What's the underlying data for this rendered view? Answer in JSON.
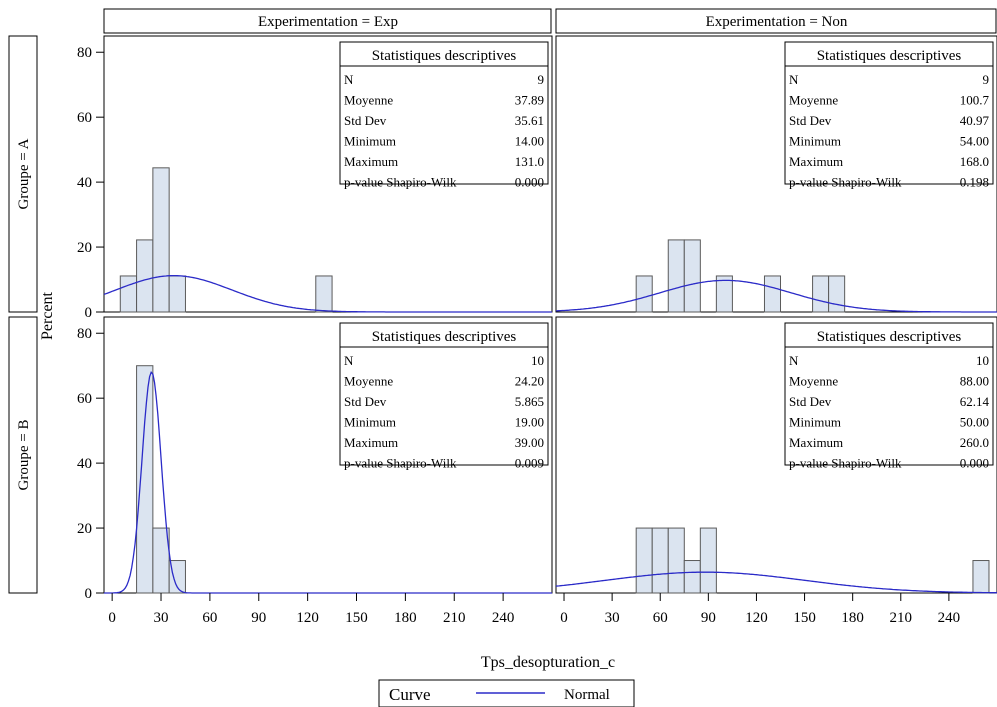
{
  "chart_data": {
    "type": "bar",
    "xlabel": "Tps_desopturation_c",
    "ylabel": "Percent",
    "column_var": "Experimentation",
    "row_var": "Groupe",
    "column_headers": [
      "Experimentation = Exp",
      "Experimentation = Non"
    ],
    "row_headers": [
      "Groupe = A",
      "Groupe = B"
    ],
    "ylim": [
      0,
      85
    ],
    "yticks": [
      0,
      20,
      40,
      60,
      80
    ],
    "xlim": [
      -5,
      270
    ],
    "xticks": [
      0,
      30,
      60,
      90,
      120,
      150,
      180,
      210,
      240
    ],
    "bin_width": 10,
    "legend": {
      "title": "Curve",
      "entries": [
        {
          "label": "Normal",
          "color": "#2b2bc8"
        }
      ],
      "placement": "bottom-center"
    },
    "colors": {
      "bar_fill": "#dbe4f0",
      "bar_edge": "#5a5a5a",
      "curve": "#2b2bc8"
    },
    "panels": [
      {
        "row": "Groupe = A",
        "col": "Experimentation = Exp",
        "bins": [
          {
            "x": 10,
            "percent": 11.1
          },
          {
            "x": 20,
            "percent": 22.2
          },
          {
            "x": 30,
            "percent": 44.4
          },
          {
            "x": 40,
            "percent": 11.1
          },
          {
            "x": 130,
            "percent": 11.1
          }
        ],
        "normal": {
          "mean": 37.89,
          "sd": 35.61
        },
        "stats_title": "Statistiques descriptives",
        "stats": [
          {
            "label": "N",
            "value": "9"
          },
          {
            "label": "Moyenne",
            "value": "37.89"
          },
          {
            "label": "Std Dev",
            "value": "35.61"
          },
          {
            "label": "Minimum",
            "value": "14.00"
          },
          {
            "label": "Maximum",
            "value": "131.0"
          },
          {
            "label": "p-value Shapiro-Wilk",
            "value": "0.000"
          }
        ]
      },
      {
        "row": "Groupe = A",
        "col": "Experimentation = Non",
        "bins": [
          {
            "x": 50,
            "percent": 11.1
          },
          {
            "x": 70,
            "percent": 22.2
          },
          {
            "x": 80,
            "percent": 22.2
          },
          {
            "x": 100,
            "percent": 11.1
          },
          {
            "x": 130,
            "percent": 11.1
          },
          {
            "x": 160,
            "percent": 11.1
          },
          {
            "x": 170,
            "percent": 11.1
          }
        ],
        "normal": {
          "mean": 100.7,
          "sd": 40.97
        },
        "stats_title": "Statistiques descriptives",
        "stats": [
          {
            "label": "N",
            "value": "9"
          },
          {
            "label": "Moyenne",
            "value": "100.7"
          },
          {
            "label": "Std Dev",
            "value": "40.97"
          },
          {
            "label": "Minimum",
            "value": "54.00"
          },
          {
            "label": "Maximum",
            "value": "168.0"
          },
          {
            "label": "p-value Shapiro-Wilk",
            "value": "0.198"
          }
        ]
      },
      {
        "row": "Groupe = B",
        "col": "Experimentation = Exp",
        "bins": [
          {
            "x": 20,
            "percent": 70
          },
          {
            "x": 30,
            "percent": 20
          },
          {
            "x": 40,
            "percent": 10
          }
        ],
        "normal": {
          "mean": 24.2,
          "sd": 5.865
        },
        "stats_title": "Statistiques descriptives",
        "stats": [
          {
            "label": "N",
            "value": "10"
          },
          {
            "label": "Moyenne",
            "value": "24.20"
          },
          {
            "label": "Std Dev",
            "value": "5.865"
          },
          {
            "label": "Minimum",
            "value": "19.00"
          },
          {
            "label": "Maximum",
            "value": "39.00"
          },
          {
            "label": "p-value Shapiro-Wilk",
            "value": "0.009"
          }
        ]
      },
      {
        "row": "Groupe = B",
        "col": "Experimentation = Non",
        "bins": [
          {
            "x": 50,
            "percent": 20
          },
          {
            "x": 60,
            "percent": 20
          },
          {
            "x": 70,
            "percent": 20
          },
          {
            "x": 80,
            "percent": 10
          },
          {
            "x": 90,
            "percent": 20
          },
          {
            "x": 260,
            "percent": 10
          }
        ],
        "normal": {
          "mean": 88.0,
          "sd": 62.14
        },
        "stats_title": "Statistiques descriptives",
        "stats": [
          {
            "label": "N",
            "value": "10"
          },
          {
            "label": "Moyenne",
            "value": "88.00"
          },
          {
            "label": "Std Dev",
            "value": "62.14"
          },
          {
            "label": "Minimum",
            "value": "50.00"
          },
          {
            "label": "Maximum",
            "value": "260.0"
          },
          {
            "label": "p-value Shapiro-Wilk",
            "value": "0.000"
          }
        ]
      }
    ]
  }
}
